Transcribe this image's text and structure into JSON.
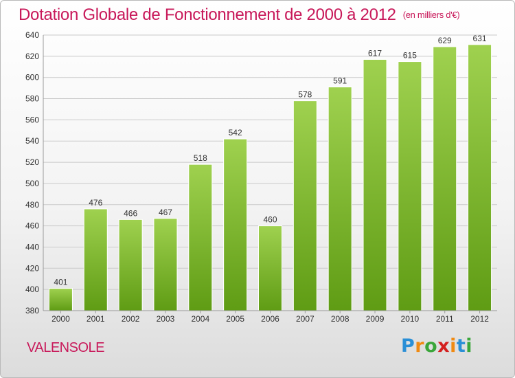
{
  "title": {
    "main": "Dotation Globale de Fonctionnement de 2000 à 2012",
    "unit": "(en milliers d'€)"
  },
  "location": "VALENSOLE",
  "logo": {
    "letters": [
      "P",
      "r",
      "o",
      "x",
      "i",
      "t",
      "i"
    ],
    "colors": [
      "#2a8fd6",
      "#f08a12",
      "#3aa63a",
      "#d4201f",
      "#f08a12",
      "#2a8fd6",
      "#3aa63a"
    ]
  },
  "colors": {
    "bar_top": "#9fd14f",
    "bar_bottom": "#5f9c14",
    "title": "#c8195a"
  },
  "chart_data": {
    "type": "bar",
    "categories": [
      "2000",
      "2001",
      "2002",
      "2003",
      "2004",
      "2005",
      "2006",
      "2007",
      "2008",
      "2009",
      "2010",
      "2011",
      "2012"
    ],
    "values": [
      401,
      476,
      466,
      467,
      518,
      542,
      460,
      578,
      591,
      617,
      615,
      629,
      631
    ],
    "ylim": [
      380,
      640
    ],
    "yticks": [
      380,
      400,
      420,
      440,
      460,
      480,
      500,
      520,
      540,
      560,
      580,
      600,
      620,
      640
    ],
    "grid": true,
    "legend": "none"
  }
}
